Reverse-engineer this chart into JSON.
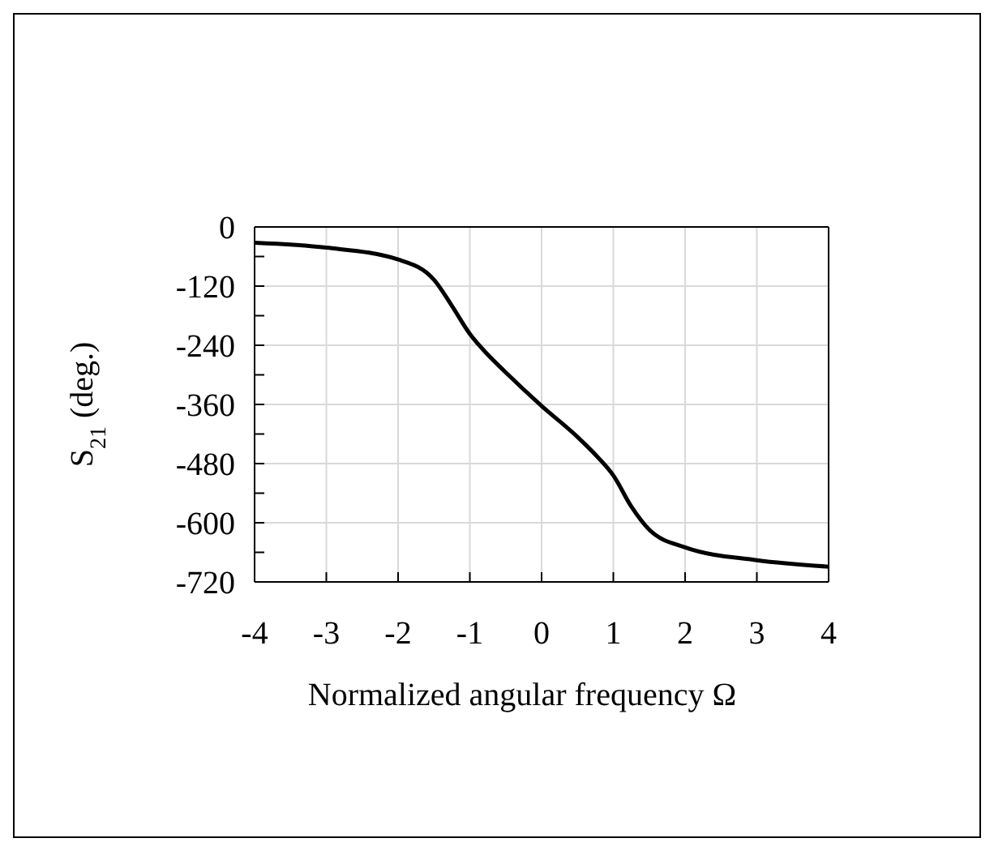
{
  "chart_data": {
    "type": "line",
    "xlabel": "Normalized angular frequency Ω",
    "ylabel": "S$_{21}$ (deg.)",
    "x": [
      -4,
      -3,
      -2,
      -1.5,
      -1.25,
      -1,
      -0.75,
      -0.5,
      0,
      0.5,
      0.75,
      1,
      1.25,
      1.5,
      2,
      3,
      4
    ],
    "series": [
      {
        "color": "#000000",
        "values": [
          -32,
          -42,
          -66,
          -107,
          -160,
          -217,
          -259,
          -295,
          -363,
          -426,
          -462,
          -504,
          -567,
          -614,
          -650,
          -676,
          -689
        ]
      }
    ],
    "xlim": [
      -4,
      4
    ],
    "xticks": [
      -4,
      -3,
      -2,
      -1,
      0,
      1,
      2,
      3,
      4
    ],
    "ylim": [
      -720,
      0
    ],
    "yticks": [
      -720,
      {
        "value": -660,
        "label": null
      },
      -600,
      {
        "value": -540,
        "label": null
      },
      -480,
      {
        "value": -420,
        "label": null
      },
      -360,
      {
        "value": -300,
        "label": null
      },
      -240,
      {
        "value": -180,
        "label": null
      },
      -120,
      {
        "value": -60,
        "label": null
      },
      0
    ],
    "grid": true,
    "marker": "none",
    "line_style": "solid",
    "legend": false
  }
}
